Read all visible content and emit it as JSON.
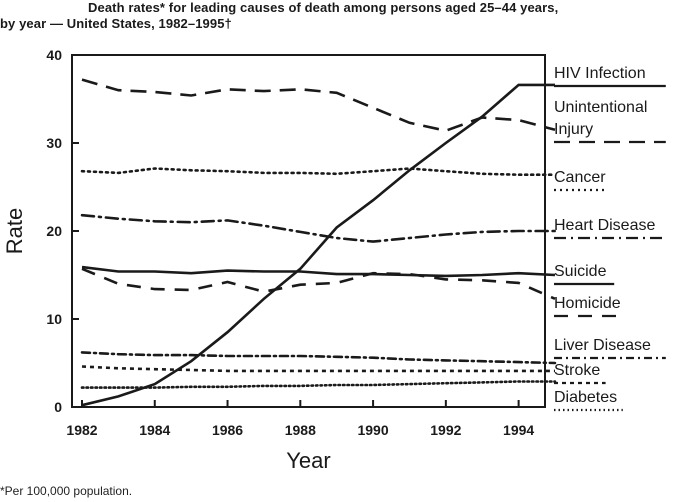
{
  "header": {
    "title_line1": "Death rates* for leading causes of death among persons aged 25–44 years,",
    "title_line2": "by year — United States, 1982–1995†"
  },
  "footnote": "*Per 100,000 population.",
  "chart_data": {
    "type": "line",
    "title": "Death rates* for leading causes of death among persons aged 25–44 years, by year — United States, 1982–1995†",
    "xlabel": "Year",
    "ylabel": "Rate",
    "xlim": [
      1982,
      1995
    ],
    "ylim": [
      0,
      40
    ],
    "x_ticks": [
      1982,
      1984,
      1986,
      1988,
      1990,
      1992,
      1994
    ],
    "y_ticks": [
      0,
      10,
      20,
      30,
      40
    ],
    "grid": false,
    "legend_placement": "right",
    "x": [
      1982,
      1983,
      1984,
      1985,
      1986,
      1987,
      1988,
      1989,
      1990,
      1991,
      1992,
      1993,
      1994,
      1995
    ],
    "series": [
      {
        "name": "HIV Infection",
        "style": "solid",
        "label_lines": [
          "HIV Infection"
        ],
        "values": [
          0.2,
          1.2,
          2.6,
          5.2,
          8.5,
          12.3,
          15.7,
          20.4,
          23.5,
          26.9,
          30.0,
          33.0,
          36.6,
          36.6
        ]
      },
      {
        "name": "Unintentional Injury",
        "style": "dashed",
        "label_lines": [
          "Unintentional",
          "Injury"
        ],
        "values": [
          37.2,
          36.0,
          35.8,
          35.4,
          36.1,
          35.9,
          36.1,
          35.7,
          34.0,
          32.3,
          31.4,
          32.9,
          32.6,
          31.5
        ]
      },
      {
        "name": "Cancer",
        "style": "dotted",
        "label_lines": [
          "Cancer"
        ],
        "values": [
          26.8,
          26.6,
          27.1,
          26.9,
          26.8,
          26.6,
          26.6,
          26.5,
          26.8,
          27.1,
          26.8,
          26.5,
          26.4,
          26.4
        ]
      },
      {
        "name": "Heart Disease",
        "style": "dashdot",
        "label_lines": [
          "Heart Disease"
        ],
        "values": [
          21.8,
          21.4,
          21.1,
          21.0,
          21.2,
          20.6,
          19.9,
          19.2,
          18.8,
          19.2,
          19.6,
          19.9,
          20.0,
          20.0
        ]
      },
      {
        "name": "Suicide",
        "style": "solid",
        "label_lines": [
          "Suicide"
        ],
        "values": [
          15.9,
          15.4,
          15.4,
          15.2,
          15.5,
          15.4,
          15.4,
          15.1,
          15.1,
          15.0,
          14.9,
          15.0,
          15.2,
          15.0
        ]
      },
      {
        "name": "Homicide",
        "style": "longdash",
        "label_lines": [
          "Homicide"
        ],
        "values": [
          15.7,
          14.0,
          13.4,
          13.3,
          14.2,
          13.1,
          13.9,
          14.1,
          15.2,
          15.1,
          14.5,
          14.4,
          14.1,
          12.3
        ]
      },
      {
        "name": "Liver Disease",
        "style": "dashdot-fine",
        "label_lines": [
          "Liver Disease"
        ],
        "values": [
          6.2,
          6.0,
          5.9,
          5.9,
          5.8,
          5.8,
          5.8,
          5.7,
          5.6,
          5.4,
          5.3,
          5.2,
          5.1,
          5.0
        ]
      },
      {
        "name": "Stroke",
        "style": "finedash",
        "label_lines": [
          "Stroke"
        ],
        "values": [
          4.6,
          4.4,
          4.3,
          4.2,
          4.1,
          4.1,
          4.1,
          4.1,
          4.1,
          4.1,
          4.1,
          4.1,
          4.1,
          4.1
        ]
      },
      {
        "name": "Diabetes",
        "style": "finedot",
        "label_lines": [
          "Diabetes"
        ],
        "values": [
          2.2,
          2.2,
          2.2,
          2.3,
          2.3,
          2.4,
          2.4,
          2.5,
          2.5,
          2.6,
          2.7,
          2.8,
          2.9,
          2.9
        ]
      }
    ]
  }
}
